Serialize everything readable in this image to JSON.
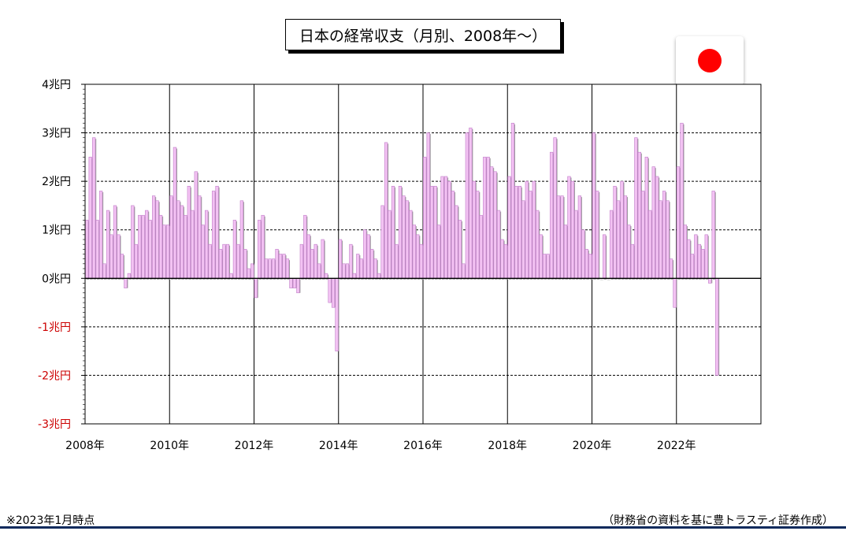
{
  "title": "日本の経常収支（月別、2008年～）",
  "flag": {
    "name": "japan-flag-icon",
    "sun_color": "#ff0000"
  },
  "footnote_left": "※2023年1月時点",
  "footnote_right": "（財務省の資料を基に豊トラスティ証券作成）",
  "colors": {
    "bar_fill": "#f3c2f3",
    "bar_edge": "#c07ec8",
    "bar_shadow": "#9b9b9b",
    "negative_label": "#cc0000",
    "positive_label": "#000000",
    "bottom_rule": "#0e2a5c"
  },
  "chart_data": {
    "type": "bar",
    "unit": "兆円",
    "ylim": [
      -3,
      4
    ],
    "yticks": [
      {
        "label": "4兆円",
        "value": 4
      },
      {
        "label": "3兆円",
        "value": 3
      },
      {
        "label": "2兆円",
        "value": 2
      },
      {
        "label": "1兆円",
        "value": 1
      },
      {
        "label": "0兆円",
        "value": 0
      },
      {
        "label": "-1兆円",
        "value": -1
      },
      {
        "label": "-2兆円",
        "value": -2
      },
      {
        "label": "-3兆円",
        "value": -3
      }
    ],
    "xticks": [
      "2008年",
      "2010年",
      "2012年",
      "2014年",
      "2016年",
      "2018年",
      "2020年",
      "2022年"
    ],
    "start": "2008-01",
    "grid": true,
    "series": [
      {
        "values": [
          1.2,
          2.5,
          2.9,
          1.2,
          1.8,
          0.3,
          1.4,
          0.9,
          1.5,
          0.9,
          0.5,
          -0.2,
          0.1,
          1.5,
          0.7,
          1.3,
          1.3,
          1.4,
          1.2,
          1.7,
          1.6,
          1.3,
          1.1,
          1.1,
          1.7,
          2.7,
          1.6,
          1.5,
          1.3,
          1.9,
          1.4,
          2.2,
          1.7,
          1.1,
          1.4,
          0.7,
          1.8,
          1.9,
          0.6,
          0.7,
          0.7,
          0.1,
          1.2,
          0.7,
          1.6,
          0.6,
          0.2,
          0.3,
          -0.4,
          1.2,
          1.3,
          0.4,
          0.4,
          0.4,
          0.6,
          0.5,
          0.5,
          0.4,
          -0.2,
          -0.2,
          -0.3,
          0.7,
          1.3,
          0.9,
          0.6,
          0.7,
          0.3,
          0.8,
          0.1,
          -0.5,
          -0.6,
          -1.5,
          0.8,
          0.3,
          0.3,
          0.7,
          0.1,
          0.5,
          0.4,
          1.0,
          0.9,
          0.6,
          0.4,
          0.1,
          1.5,
          2.8,
          1.4,
          1.9,
          0.7,
          1.9,
          1.7,
          1.6,
          1.4,
          1.1,
          0.9,
          0.7,
          2.5,
          3.0,
          1.9,
          1.9,
          1.1,
          2.1,
          2.1,
          2.0,
          1.8,
          1.5,
          1.2,
          0.3,
          3.0,
          3.1,
          2.0,
          1.8,
          1.3,
          2.5,
          2.5,
          2.3,
          2.2,
          1.4,
          0.8,
          0.7,
          2.1,
          3.2,
          1.9,
          1.9,
          1.6,
          2.0,
          1.8,
          2.0,
          1.4,
          0.9,
          0.5,
          0.5,
          2.6,
          2.9,
          1.7,
          1.7,
          1.1,
          2.1,
          2.0,
          1.4,
          1.7,
          1.0,
          0.6,
          0.5,
          3.0,
          1.8,
          0.0,
          0.9,
          0.0,
          1.4,
          1.9,
          1.6,
          2.0,
          1.7,
          1.1,
          0.7,
          2.9,
          2.6,
          1.8,
          2.5,
          1.4,
          2.3,
          2.1,
          1.6,
          1.8,
          1.6,
          0.4,
          -0.6,
          2.3,
          3.2,
          1.1,
          0.8,
          0.5,
          0.9,
          0.7,
          0.6,
          0.9,
          -0.1,
          1.8,
          -2.0
        ]
      }
    ]
  }
}
